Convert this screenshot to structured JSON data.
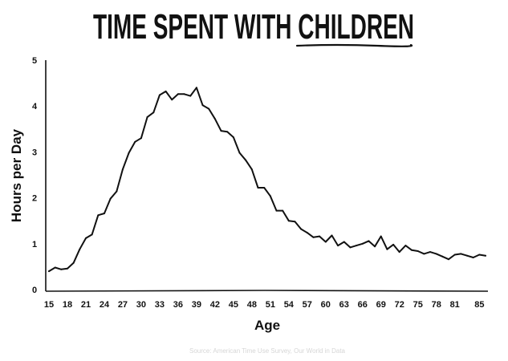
{
  "colors": {
    "ink": "#111111",
    "source": "#d6d6d6",
    "background": "#ffffff"
  },
  "chart_data": {
    "type": "line",
    "title_part1": "TIME SPENT WITH ",
    "title_part2": "CHILDREN",
    "xlabel": "Age",
    "ylabel": "Hours per Day",
    "source": "Source: American Time Use Survey, Our World in Data",
    "xlim": [
      15,
      86
    ],
    "ylim": [
      0,
      5
    ],
    "xticks": [
      15,
      18,
      21,
      24,
      27,
      30,
      33,
      36,
      39,
      42,
      45,
      48,
      51,
      54,
      57,
      60,
      63,
      66,
      69,
      72,
      75,
      78,
      81,
      85
    ],
    "yticks": [
      0,
      1,
      2,
      3,
      4,
      5
    ],
    "grid": false,
    "legend": "none",
    "series": [
      {
        "x": [
          15,
          16,
          17,
          18,
          19,
          20,
          21,
          22,
          23,
          24,
          25,
          26,
          27,
          28,
          29,
          30,
          31,
          32,
          33,
          34,
          35,
          36,
          37,
          38,
          39,
          40,
          41,
          42,
          43,
          44,
          45,
          46,
          47,
          48,
          49,
          50,
          51,
          52,
          53,
          54,
          55,
          56,
          57,
          58,
          59,
          60,
          61,
          62,
          63,
          64,
          65,
          66,
          67,
          68,
          69,
          70,
          71,
          72,
          73,
          74,
          75,
          76,
          77,
          78,
          79,
          80,
          81,
          82,
          83,
          84,
          85,
          86
        ],
        "values": [
          0.4,
          0.48,
          0.44,
          0.46,
          0.58,
          0.88,
          1.12,
          1.2,
          1.62,
          1.66,
          1.98,
          2.14,
          2.62,
          2.98,
          3.22,
          3.3,
          3.76,
          3.86,
          4.24,
          4.32,
          4.14,
          4.26,
          4.26,
          4.22,
          4.4,
          4.02,
          3.94,
          3.72,
          3.46,
          3.44,
          3.32,
          2.98,
          2.82,
          2.62,
          2.22,
          2.22,
          2.04,
          1.72,
          1.72,
          1.5,
          1.48,
          1.32,
          1.24,
          1.14,
          1.16,
          1.04,
          1.18,
          0.96,
          1.04,
          0.92,
          0.96,
          1.0,
          1.06,
          0.94,
          1.16,
          0.88,
          0.98,
          0.82,
          0.96,
          0.86,
          0.84,
          0.78,
          0.82,
          0.78,
          0.72,
          0.66,
          0.76,
          0.78,
          0.74,
          0.7,
          0.76,
          0.74
        ]
      }
    ]
  }
}
